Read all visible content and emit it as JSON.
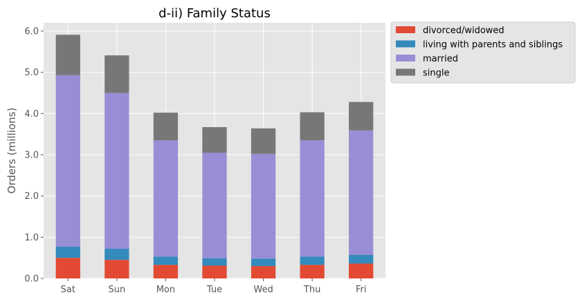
{
  "chart_data": {
    "type": "bar",
    "stacked": true,
    "title": "d-ii) Family Status",
    "xlabel": "",
    "ylabel": "Orders (millions)",
    "ylim": [
      0,
      6.2
    ],
    "yticks": [
      "0.0",
      "1.0",
      "2.0",
      "3.0",
      "4.0",
      "5.0",
      "6.0"
    ],
    "grid": true,
    "legend_position": "outside-right-top",
    "categories": [
      "Sat",
      "Sun",
      "Mon",
      "Tue",
      "Wed",
      "Thu",
      "Fri"
    ],
    "series": [
      {
        "name": "divorced/widowed",
        "color": "#E24A33",
        "values": [
          0.5,
          0.45,
          0.33,
          0.31,
          0.3,
          0.33,
          0.36
        ]
      },
      {
        "name": "living with parents and siblings",
        "color": "#348ABD",
        "values": [
          0.27,
          0.27,
          0.2,
          0.18,
          0.18,
          0.2,
          0.21
        ]
      },
      {
        "name": "married",
        "color": "#988ED5",
        "values": [
          4.16,
          3.78,
          2.82,
          2.56,
          2.54,
          2.82,
          3.02
        ]
      },
      {
        "name": "single",
        "color": "#777777",
        "values": [
          0.98,
          0.91,
          0.67,
          0.62,
          0.62,
          0.68,
          0.69
        ]
      }
    ]
  }
}
